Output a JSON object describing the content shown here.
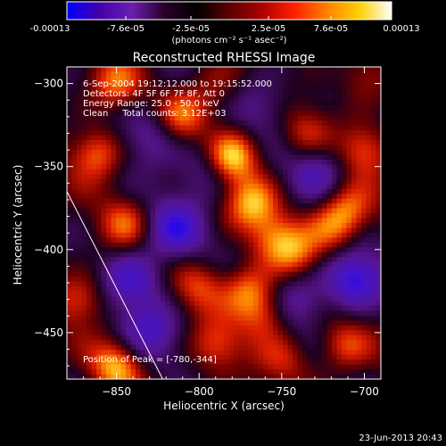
{
  "colorbar": {
    "tick_values": [
      "-0.00013",
      "-7.6e-05",
      "-2.5e-05",
      "2.5e-05",
      "7.6e-05",
      "0.00013"
    ],
    "unit_label": "(photons cm⁻² s⁻¹ asec⁻²)",
    "colors": [
      "#0000ff",
      "#4400aa",
      "#6a1fb0",
      "#2a002a",
      "#000000",
      "#5a0000",
      "#aa0000",
      "#ff2000",
      "#ff8000",
      "#ffd000",
      "#ffffff"
    ]
  },
  "plot": {
    "title": "Reconstructed RHESSI Image",
    "info_lines": [
      "6-Sep-2004 19:12:12.000 to 19:15:52.000",
      "Detectors: 4F 5F 6F 7F 8F, Att 0",
      "Energy Range: 25.0 - 50.0 keV",
      "Clean     Total counts: 3.12E+03"
    ],
    "peak_label": "Position of Peak = [-780,-344]",
    "footer_timestamp": "23-Jun-2013 20:43"
  },
  "chart_data": {
    "type": "heatmap",
    "title": "Reconstructed RHESSI Image",
    "xlabel": "Heliocentric X (arcsec)",
    "ylabel": "Heliocentric Y (arcsec)",
    "xlim": [
      -880,
      -690
    ],
    "ylim": [
      -478,
      -290
    ],
    "xticks": [
      -850,
      -800,
      -750,
      -700
    ],
    "xtick_labels": [
      "−850",
      "−800",
      "−750",
      "−700"
    ],
    "yticks": [
      -300,
      -350,
      -400,
      -450
    ],
    "ytick_labels": [
      "−300",
      "−350",
      "−400",
      "−450"
    ],
    "colorbar_range": [
      -0.00013,
      0.00013
    ],
    "limb_line": [
      [
        -880,
        -365
      ],
      [
        -822,
        -478
      ]
    ],
    "peak_position": [
      -780,
      -344
    ],
    "sources": [
      {
        "x": -780,
        "y": -344,
        "strength": 1.0
      },
      {
        "x": -768,
        "y": -372,
        "strength": 0.7
      },
      {
        "x": -810,
        "y": -320,
        "strength": 0.6
      },
      {
        "x": -850,
        "y": -300,
        "strength": 0.55
      },
      {
        "x": -862,
        "y": -342,
        "strength": 0.65
      },
      {
        "x": -845,
        "y": -385,
        "strength": 0.5
      },
      {
        "x": -755,
        "y": -392,
        "strength": 0.45
      },
      {
        "x": -742,
        "y": -402,
        "strength": 0.55
      },
      {
        "x": -700,
        "y": -340,
        "strength": 0.55
      },
      {
        "x": -710,
        "y": -376,
        "strength": 0.6
      },
      {
        "x": -720,
        "y": -388,
        "strength": 0.5
      },
      {
        "x": -800,
        "y": -422,
        "strength": 0.45
      },
      {
        "x": -770,
        "y": -425,
        "strength": 0.65
      },
      {
        "x": -760,
        "y": -440,
        "strength": 0.5
      },
      {
        "x": -790,
        "y": -458,
        "strength": 0.5
      },
      {
        "x": -850,
        "y": -470,
        "strength": 0.75
      },
      {
        "x": -872,
        "y": -430,
        "strength": 0.5
      },
      {
        "x": -712,
        "y": -458,
        "strength": 0.5
      },
      {
        "x": -735,
        "y": -330,
        "strength": 0.4
      },
      {
        "x": -790,
        "y": -305,
        "strength": 0.35
      },
      {
        "x": -700,
        "y": -296,
        "strength": 0.35
      },
      {
        "x": -748,
        "y": -466,
        "strength": 0.35
      }
    ],
    "negative_regions": [
      {
        "x": -815,
        "y": -388,
        "strength": 0.7
      },
      {
        "x": -840,
        "y": -418,
        "strength": 0.6
      },
      {
        "x": -706,
        "y": -418,
        "strength": 0.85
      },
      {
        "x": -830,
        "y": -450,
        "strength": 0.55
      },
      {
        "x": -795,
        "y": -350,
        "strength": 0.45
      },
      {
        "x": -728,
        "y": -352,
        "strength": 0.5
      },
      {
        "x": -762,
        "y": -312,
        "strength": 0.4
      },
      {
        "x": -830,
        "y": -330,
        "strength": 0.45
      },
      {
        "x": -740,
        "y": -430,
        "strength": 0.45
      }
    ]
  }
}
